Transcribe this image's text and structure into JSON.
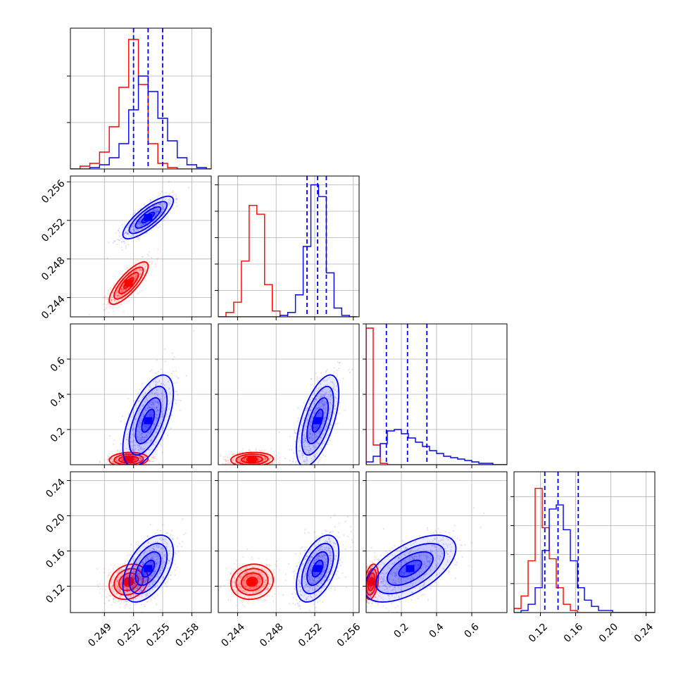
{
  "chart_data": {
    "type": "corner",
    "grid": true,
    "colors": {
      "red": "#ff0000",
      "blue": "#0000ff"
    },
    "parameters": [
      {
        "ticks": [
          0.249,
          0.252,
          0.255,
          0.258
        ],
        "tick_labels": [
          "0.249",
          "0.252",
          "0.255",
          "0.258"
        ]
      },
      {
        "ticks": [
          0.244,
          0.248,
          0.252,
          0.256
        ],
        "tick_labels": [
          "0.244",
          "0.248",
          "0.252",
          "0.256"
        ]
      },
      {
        "ticks": [
          0.2,
          0.4,
          0.6
        ],
        "tick_labels": [
          "0.2",
          "0.4",
          "0.6"
        ]
      },
      {
        "ticks": [
          0.12,
          0.16,
          0.2,
          0.24
        ],
        "tick_labels": [
          "0.12",
          "0.16",
          "0.20",
          "0.24"
        ]
      }
    ],
    "series": [
      {
        "color": "red",
        "means": [
          0.2515,
          0.2455,
          0.03,
          0.125
        ],
        "sds": [
          0.001,
          0.0011,
          0.02,
          0.01
        ],
        "correlations": {
          "1,0": 0.8,
          "2,0": 0.1,
          "2,1": 0.1,
          "3,0": 0.2,
          "3,1": 0.1,
          "3,2": 0.3
        }
      },
      {
        "color": "blue",
        "means": [
          0.2535,
          0.2523,
          0.25,
          0.14
        ],
        "sds": [
          0.0013,
          0.0011,
          0.13,
          0.019
        ],
        "quantile_lines": [
          [
            0.252,
            0.2535,
            0.255
          ],
          [
            0.2512,
            0.2523,
            0.2532
          ],
          [
            0.115,
            0.235,
            0.345
          ],
          [
            0.125,
            0.14,
            0.163
          ]
        ],
        "correlations": {
          "1,0": 0.8,
          "2,0": 0.6,
          "2,1": 0.6,
          "3,0": 0.5,
          "3,1": 0.5,
          "3,2": 0.6
        }
      }
    ],
    "histograms": {
      "0": {
        "edges": [
          0.2455,
          0.2465,
          0.2475,
          0.2485,
          0.2495,
          0.2505,
          0.2515,
          0.2525,
          0.2535,
          0.2545,
          0.2555,
          0.2565,
          0.2575,
          0.2585,
          0.2595,
          0.2605
        ],
        "red": [
          0,
          2,
          4,
          12,
          30,
          58,
          92,
          60,
          18,
          4,
          1,
          0,
          0,
          0,
          0
        ],
        "blue": [
          0,
          0,
          1,
          3,
          8,
          18,
          42,
          66,
          55,
          36,
          20,
          8,
          3,
          1,
          0
        ]
      },
      "1": {
        "edges": [
          0.242,
          0.2428,
          0.2436,
          0.2444,
          0.2452,
          0.246,
          0.2468,
          0.2476,
          0.2484,
          0.2492,
          0.25,
          0.2508,
          0.2516,
          0.2524,
          0.2532,
          0.254,
          0.2548,
          0.2556,
          0.2564
        ],
        "red": [
          0,
          3,
          10,
          38,
          76,
          70,
          22,
          4,
          1,
          0,
          0,
          0,
          0,
          0,
          0,
          0,
          0,
          0
        ],
        "blue": [
          0,
          0,
          0,
          0,
          0,
          0,
          0,
          0,
          1,
          3,
          15,
          48,
          90,
          82,
          30,
          6,
          1,
          0
        ]
      },
      "2": {
        "edges": [
          0.0,
          0.04,
          0.08,
          0.12,
          0.16,
          0.2,
          0.24,
          0.28,
          0.32,
          0.36,
          0.4,
          0.44,
          0.48,
          0.52,
          0.56,
          0.6,
          0.64,
          0.68,
          0.72,
          0.76,
          0.8
        ],
        "red": [
          97,
          14,
          1,
          0,
          0,
          0,
          0,
          0,
          0,
          0,
          0,
          0,
          0,
          0,
          0,
          0,
          0,
          0,
          0,
          0
        ],
        "blue": [
          2,
          6,
          15,
          24,
          25,
          22,
          19,
          16,
          13,
          10,
          8,
          6,
          5,
          4,
          3,
          2,
          1,
          1,
          0,
          0
        ]
      },
      "3": {
        "edges": [
          0.09,
          0.098,
          0.106,
          0.114,
          0.122,
          0.13,
          0.138,
          0.146,
          0.154,
          0.162,
          0.17,
          0.178,
          0.186,
          0.194,
          0.202,
          0.21,
          0.218,
          0.226,
          0.234,
          0.242,
          0.25
        ],
        "red": [
          2,
          8,
          25,
          60,
          41,
          26,
          12,
          4,
          1,
          0,
          0,
          0,
          0,
          0,
          0,
          0,
          0,
          0,
          0,
          0
        ],
        "blue": [
          0,
          1,
          4,
          12,
          30,
          50,
          52,
          40,
          25,
          12,
          6,
          3,
          1,
          1,
          0,
          0,
          0,
          0,
          0,
          0
        ]
      }
    }
  }
}
